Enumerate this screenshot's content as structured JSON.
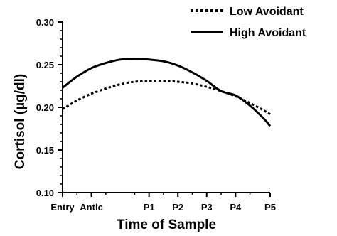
{
  "chart_data": {
    "type": "line",
    "xlabel": "Time of Sample",
    "ylabel": "Cortisol  (µg/dl)",
    "ylim": [
      0.1,
      0.3
    ],
    "y_ticks": [
      "0.10",
      "0.15",
      "0.20",
      "0.25",
      "0.30"
    ],
    "y_minor_step": 0.01,
    "x_tick_labels": [
      "Entry",
      "Antic",
      "P1",
      "P2",
      "P3",
      "P4",
      "P5"
    ],
    "x_tick_positions": [
      0,
      1,
      3,
      4,
      5,
      6,
      7.2
    ],
    "xlim": [
      0,
      7.2
    ],
    "grid": false,
    "legend_position": "top-right",
    "series": [
      {
        "name": "Low Avoidant",
        "line_style": "dotted",
        "x": [
          0,
          0.5,
          1,
          1.5,
          2,
          2.5,
          3,
          3.5,
          4,
          4.5,
          5,
          5.5,
          6,
          6.5,
          7,
          7.2
        ],
        "values": [
          0.198,
          0.208,
          0.216,
          0.222,
          0.227,
          0.23,
          0.231,
          0.231,
          0.23,
          0.228,
          0.224,
          0.219,
          0.213,
          0.205,
          0.196,
          0.192
        ]
      },
      {
        "name": "High Avoidant",
        "line_style": "solid",
        "x": [
          0,
          0.5,
          1,
          1.5,
          2,
          2.5,
          3,
          3.5,
          4,
          4.5,
          5,
          5.5,
          6,
          6.5,
          7,
          7.2
        ],
        "values": [
          0.223,
          0.236,
          0.246,
          0.252,
          0.256,
          0.257,
          0.256,
          0.254,
          0.249,
          0.241,
          0.231,
          0.219,
          0.214,
          0.202,
          0.186,
          0.178
        ]
      }
    ]
  },
  "colors": {
    "line": "#000000",
    "background": "#ffffff"
  }
}
